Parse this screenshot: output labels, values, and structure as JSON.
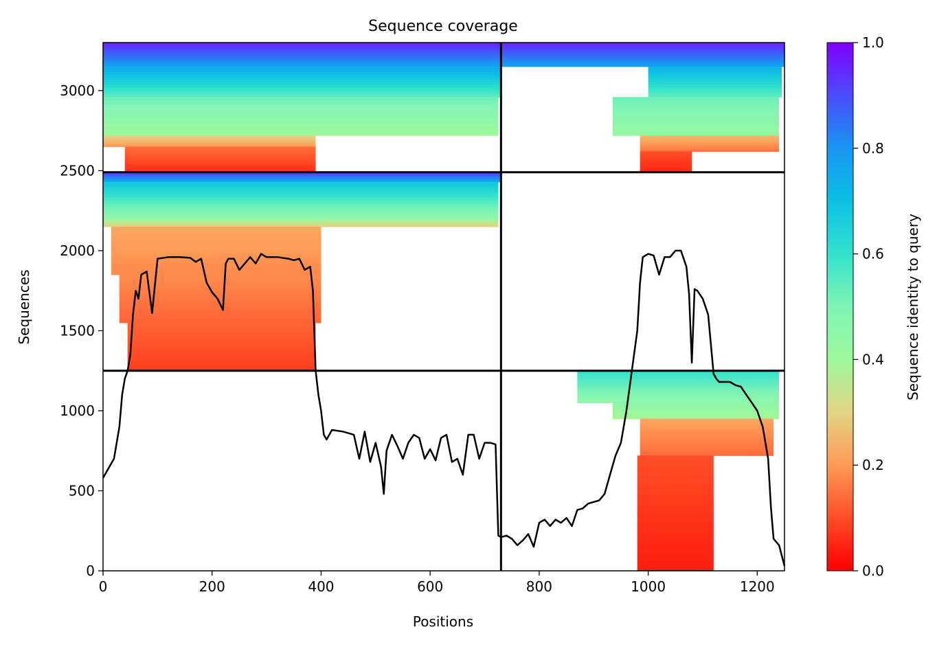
{
  "chart_data": {
    "type": "heatmap",
    "title": "Sequence coverage",
    "xlabel": "Positions",
    "ylabel": "Sequences",
    "xlim": [
      0,
      1250
    ],
    "ylim": [
      0,
      3300
    ],
    "xticks": [
      "0",
      "200",
      "400",
      "600",
      "800",
      "1000",
      "1200"
    ],
    "yticks": [
      "0",
      "500",
      "1000",
      "1500",
      "2000",
      "2500",
      "3000"
    ],
    "grid": false,
    "colorbar": {
      "label": "Sequence identity to query",
      "range": [
        0,
        1
      ],
      "ticks": [
        "0.0",
        "0.2",
        "0.4",
        "0.6",
        "0.8",
        "1.0"
      ],
      "colormap": "rainbow_r"
    },
    "chain_boundaries": {
      "x": [
        730
      ],
      "y": [
        1250,
        2490
      ]
    },
    "blocks": [
      {
        "x": [
          0,
          730
        ],
        "y": [
          2490,
          3300
        ],
        "bands": [
          {
            "y0": 3150,
            "y1": 3300,
            "x0": 0,
            "x1": 730,
            "identity": [
              0.95,
              0.78
            ]
          },
          {
            "y0": 2960,
            "y1": 3150,
            "x0": 0,
            "x1": 730,
            "identity": [
              0.75,
              0.55
            ]
          },
          {
            "y0": 2720,
            "y1": 2960,
            "x0": 0,
            "x1": 725,
            "identity": [
              0.52,
              0.4
            ]
          },
          {
            "y0": 2650,
            "y1": 2720,
            "x0": 0,
            "x1": 390,
            "identity": [
              0.3,
              0.2
            ]
          },
          {
            "y0": 2490,
            "y1": 2650,
            "x0": 40,
            "x1": 390,
            "identity": [
              0.14,
              0.06
            ]
          }
        ]
      },
      {
        "x": [
          730,
          1250
        ],
        "y": [
          2490,
          3300
        ],
        "bands": [
          {
            "y0": 3150,
            "y1": 3300,
            "x0": 730,
            "x1": 1250,
            "identity": [
              0.95,
              0.78
            ]
          },
          {
            "y0": 2960,
            "y1": 3150,
            "x0": 1000,
            "x1": 1245,
            "identity": [
              0.72,
              0.55
            ]
          },
          {
            "y0": 2720,
            "y1": 2960,
            "x0": 935,
            "x1": 1240,
            "identity": [
              0.52,
              0.42
            ]
          },
          {
            "y0": 2620,
            "y1": 2720,
            "x0": 985,
            "x1": 1240,
            "identity": [
              0.25,
              0.15
            ]
          },
          {
            "y0": 2490,
            "y1": 2620,
            "x0": 985,
            "x1": 1080,
            "identity": [
              0.1,
              0.05
            ]
          }
        ]
      },
      {
        "x": [
          0,
          730
        ],
        "y": [
          1250,
          2490
        ],
        "bands": [
          {
            "y0": 2430,
            "y1": 2490,
            "x0": 0,
            "x1": 730,
            "identity": [
              0.92,
              0.75
            ]
          },
          {
            "y0": 2200,
            "y1": 2430,
            "x0": 0,
            "x1": 725,
            "identity": [
              0.68,
              0.45
            ]
          },
          {
            "y0": 2150,
            "y1": 2200,
            "x0": 0,
            "x1": 725,
            "identity": [
              0.4,
              0.3
            ]
          },
          {
            "y0": 1850,
            "y1": 2150,
            "x0": 15,
            "x1": 400,
            "identity": [
              0.22,
              0.18
            ]
          },
          {
            "y0": 1550,
            "y1": 1850,
            "x0": 30,
            "x1": 400,
            "identity": [
              0.18,
              0.13
            ]
          },
          {
            "y0": 1250,
            "y1": 1550,
            "x0": 45,
            "x1": 390,
            "identity": [
              0.13,
              0.08
            ]
          }
        ]
      },
      {
        "x": [
          730,
          1250
        ],
        "y": [
          0,
          1250
        ],
        "bands": [
          {
            "y0": 1050,
            "y1": 1250,
            "x0": 870,
            "x1": 1240,
            "identity": [
              0.6,
              0.45
            ]
          },
          {
            "y0": 950,
            "y1": 1050,
            "x0": 935,
            "x1": 1240,
            "identity": [
              0.45,
              0.38
            ]
          },
          {
            "y0": 850,
            "y1": 950,
            "x0": 985,
            "x1": 1230,
            "identity": [
              0.22,
              0.18
            ]
          },
          {
            "y0": 720,
            "y1": 850,
            "x0": 985,
            "x1": 1230,
            "identity": [
              0.18,
              0.14
            ]
          },
          {
            "y0": 0,
            "y1": 720,
            "x0": 980,
            "x1": 1120,
            "identity": [
              0.1,
              0.04
            ]
          }
        ]
      }
    ],
    "coverage_line": {
      "x": [
        0,
        10,
        20,
        30,
        35,
        40,
        45,
        50,
        55,
        60,
        65,
        70,
        80,
        90,
        100,
        120,
        140,
        160,
        170,
        180,
        190,
        200,
        210,
        220,
        225,
        230,
        240,
        250,
        270,
        280,
        290,
        300,
        320,
        340,
        350,
        360,
        370,
        380,
        385,
        390,
        395,
        400,
        405,
        410,
        420,
        440,
        460,
        470,
        480,
        490,
        500,
        510,
        515,
        520,
        530,
        540,
        550,
        560,
        570,
        580,
        590,
        600,
        610,
        620,
        630,
        640,
        650,
        660,
        670,
        680,
        690,
        700,
        710,
        720,
        725,
        730,
        740,
        750,
        760,
        770,
        780,
        790,
        800,
        810,
        820,
        830,
        840,
        850,
        860,
        870,
        880,
        890,
        900,
        910,
        920,
        930,
        940,
        950,
        960,
        970,
        980,
        985,
        990,
        1000,
        1010,
        1020,
        1030,
        1040,
        1050,
        1060,
        1070,
        1075,
        1080,
        1085,
        1090,
        1100,
        1110,
        1120,
        1125,
        1130,
        1140,
        1150,
        1160,
        1170,
        1180,
        1190,
        1200,
        1210,
        1220,
        1225,
        1230,
        1240,
        1250
      ],
      "y": [
        580,
        640,
        700,
        900,
        1100,
        1200,
        1250,
        1350,
        1600,
        1750,
        1700,
        1850,
        1870,
        1610,
        1950,
        1960,
        1960,
        1955,
        1930,
        1950,
        1800,
        1740,
        1700,
        1630,
        1920,
        1950,
        1950,
        1880,
        1960,
        1920,
        1980,
        1960,
        1960,
        1950,
        1940,
        1950,
        1880,
        1900,
        1750,
        1250,
        1100,
        1000,
        850,
        820,
        880,
        870,
        850,
        700,
        870,
        680,
        800,
        650,
        480,
        750,
        850,
        780,
        700,
        800,
        850,
        830,
        700,
        760,
        690,
        830,
        850,
        680,
        700,
        600,
        850,
        850,
        700,
        800,
        800,
        790,
        220,
        210,
        220,
        200,
        160,
        190,
        230,
        150,
        300,
        320,
        280,
        320,
        300,
        330,
        280,
        380,
        390,
        420,
        430,
        440,
        480,
        600,
        720,
        800,
        1000,
        1250,
        1500,
        1800,
        1960,
        1980,
        1970,
        1850,
        1960,
        1960,
        2000,
        2000,
        1900,
        1730,
        1300,
        1760,
        1750,
        1700,
        1600,
        1230,
        1200,
        1180,
        1180,
        1180,
        1160,
        1150,
        1100,
        1050,
        1000,
        900,
        700,
        400,
        200,
        160,
        30
      ]
    }
  }
}
